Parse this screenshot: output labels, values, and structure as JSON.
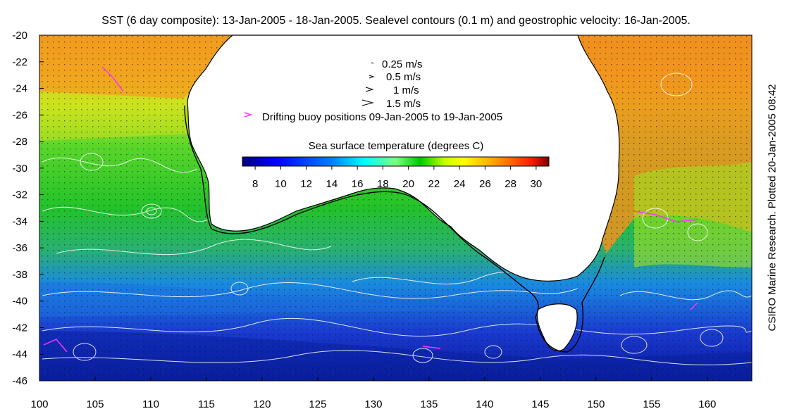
{
  "title": "SST (6 day composite): 13-Jan-2005 - 18-Jan-2005. Sealevel contours (0.1 m) and geostrophic velocity: 16-Jan-2005.",
  "side_credit": "CSIRO Marine Research. Plotted 20-Jan-2005 08:42",
  "map": {
    "lon_range": [
      100,
      164
    ],
    "lat_range": [
      -46,
      -20
    ],
    "x_ticks": [
      "100",
      "105",
      "110",
      "115",
      "120",
      "125",
      "130",
      "135",
      "140",
      "145",
      "150",
      "155",
      "160"
    ],
    "y_ticks": [
      "-20",
      "-22",
      "-24",
      "-26",
      "-28",
      "-30",
      "-32",
      "-34",
      "-36",
      "-38",
      "-40",
      "-42",
      "-44",
      "-46"
    ]
  },
  "legend": {
    "velocity_labels": [
      "0.25 m/s",
      "0.5 m/s",
      "1 m/s",
      "1.5 m/s"
    ],
    "buoy_label": "Drifting buoy positions 09-Jan-2005 to 19-Jan-2005",
    "buoy_color": "#ff33ff"
  },
  "colorbar": {
    "title": "Sea surface temperature (degrees C)",
    "ticks": [
      "8",
      "10",
      "12",
      "14",
      "16",
      "18",
      "20",
      "22",
      "24",
      "26",
      "28",
      "30"
    ],
    "range": [
      7,
      31
    ],
    "colors": [
      "#00007f",
      "#0000ff",
      "#007fff",
      "#00ffff",
      "#7fff7f",
      "#00c800",
      "#ffff00",
      "#ff7f00",
      "#ff0000",
      "#7f0000"
    ]
  }
}
